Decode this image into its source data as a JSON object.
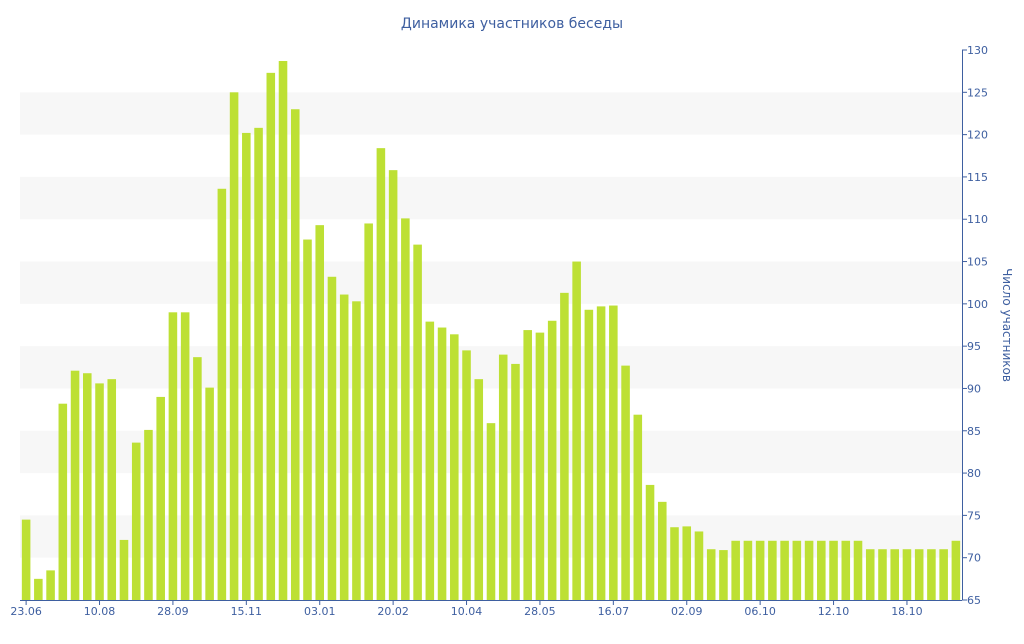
{
  "chart_data": {
    "type": "bar",
    "title": "Динамика участников беседы",
    "xlabel": "",
    "ylabel": "Число участников",
    "ylim": [
      65,
      130
    ],
    "y_ticks": [
      65,
      70,
      75,
      80,
      85,
      90,
      95,
      100,
      105,
      110,
      115,
      120,
      125,
      130
    ],
    "y_axis_side": "right",
    "grid": "alternating horizontal bands",
    "x_tick_labels": [
      {
        "index": 0,
        "label": "23.06"
      },
      {
        "index": 6,
        "label": "10.08"
      },
      {
        "index": 12,
        "label": "28.09"
      },
      {
        "index": 18,
        "label": "15.11"
      },
      {
        "index": 24,
        "label": "03.01"
      },
      {
        "index": 30,
        "label": "20.02"
      },
      {
        "index": 36,
        "label": "10.04"
      },
      {
        "index": 42,
        "label": "28.05"
      },
      {
        "index": 48,
        "label": "16.07"
      },
      {
        "index": 54,
        "label": "02.09"
      },
      {
        "index": 60,
        "label": "06.10"
      },
      {
        "index": 66,
        "label": "12.10"
      },
      {
        "index": 72,
        "label": "18.10"
      }
    ],
    "values": [
      74.5,
      67.5,
      68.5,
      88.2,
      92.1,
      91.8,
      90.6,
      91.1,
      72.1,
      83.6,
      85.1,
      89.0,
      99.0,
      99.0,
      93.7,
      90.1,
      113.6,
      125.0,
      120.2,
      120.8,
      127.3,
      128.7,
      123.0,
      107.6,
      109.3,
      103.2,
      101.1,
      100.3,
      109.5,
      118.4,
      115.8,
      110.1,
      107.0,
      97.9,
      97.2,
      96.4,
      94.5,
      91.1,
      85.9,
      94.0,
      92.9,
      96.9,
      96.6,
      98.0,
      101.3,
      105.0,
      99.3,
      99.7,
      99.8,
      92.7,
      86.9,
      78.6,
      76.6,
      73.6,
      73.7,
      73.1,
      71.0,
      70.9,
      72.0,
      72.0,
      72.0,
      72.0,
      72.0,
      72.0,
      72.0,
      72.0,
      72.0,
      72.0,
      72.0,
      71.0,
      71.0,
      71.0,
      71.0,
      71.0,
      71.0,
      71.0,
      72.0
    ],
    "bar_color": "#bde034",
    "band_color": "#f7f7f7",
    "text_color": "#3e5fa0"
  }
}
